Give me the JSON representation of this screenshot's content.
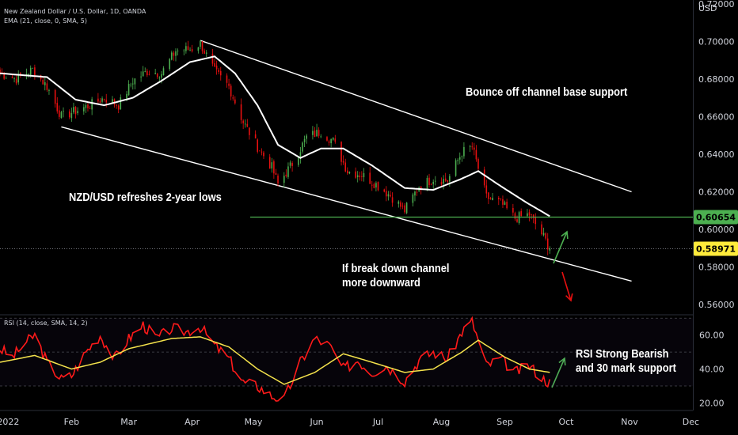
{
  "header": {
    "symbol_line": "New Zealand Dollar / U.S. Dollar, 1D, OANDA",
    "indicator_line": "EMA (21, close, 0, SMA, 5)",
    "rsi_label": "RSI (14, close, SMA, 14, 2)"
  },
  "annotations": {
    "bounce": "Bounce off channel base support",
    "lows": "NZD/USD refreshes 2-year lows",
    "break_line1": "If break down channel",
    "break_line2": "more downward",
    "rsi_line1": "RSI Strong Bearish",
    "rsi_line2": "and 30 mark support"
  },
  "colors": {
    "background": "#000000",
    "bull": "#4caf50",
    "bear": "#e81010",
    "ema": "#ffffff",
    "rsi": "#ff1a1a",
    "rsi_ma": "#f5e34c",
    "support": "#4caf50",
    "arrow_up": "#4caf50",
    "arrow_down": "#e81010",
    "price_badge": "#ffeb3b",
    "level_badge": "#4caf50"
  },
  "chart_data": [
    {
      "type": "candlestick",
      "title": "New Zealand Dollar / U.S. Dollar, 1D, OANDA",
      "y_unit": "USD",
      "ylim": [
        0.555,
        0.722
      ],
      "y_ticks": [
        "0.56000",
        "0.58000",
        "0.60000",
        "0.62000",
        "0.64000",
        "0.66000",
        "0.68000",
        "0.70000",
        "0.72000"
      ],
      "x_range": [
        "2021-12-28",
        "2022-12-02"
      ],
      "x_ticks": [
        {
          "label": "2022",
          "date": "2022-01-01"
        },
        {
          "label": "Feb",
          "date": "2022-02-01"
        },
        {
          "label": "Mar",
          "date": "2022-03-01"
        },
        {
          "label": "Apr",
          "date": "2022-04-01"
        },
        {
          "label": "May",
          "date": "2022-05-01"
        },
        {
          "label": "Jun",
          "date": "2022-06-01"
        },
        {
          "label": "Jul",
          "date": "2022-07-01"
        },
        {
          "label": "Aug",
          "date": "2022-08-01"
        },
        {
          "label": "Sep",
          "date": "2022-09-01"
        },
        {
          "label": "Oct",
          "date": "2022-10-01"
        },
        {
          "label": "Nov",
          "date": "2022-11-01"
        },
        {
          "label": "Dec",
          "date": "2022-12-01"
        }
      ],
      "close_path": [
        {
          "date": "2021-12-28",
          "close": 0.683
        },
        {
          "date": "2022-01-05",
          "close": 0.68
        },
        {
          "date": "2022-01-13",
          "close": 0.685
        },
        {
          "date": "2022-01-20",
          "close": 0.676
        },
        {
          "date": "2022-01-27",
          "close": 0.66
        },
        {
          "date": "2022-02-03",
          "close": 0.663
        },
        {
          "date": "2022-02-10",
          "close": 0.666
        },
        {
          "date": "2022-02-17",
          "close": 0.67
        },
        {
          "date": "2022-02-24",
          "close": 0.666
        },
        {
          "date": "2022-03-03",
          "close": 0.679
        },
        {
          "date": "2022-03-10",
          "close": 0.684
        },
        {
          "date": "2022-03-17",
          "close": 0.683
        },
        {
          "date": "2022-03-24",
          "close": 0.695
        },
        {
          "date": "2022-04-01",
          "close": 0.696
        },
        {
          "date": "2022-04-05",
          "close": 0.699
        },
        {
          "date": "2022-04-12",
          "close": 0.684
        },
        {
          "date": "2022-04-19",
          "close": 0.676
        },
        {
          "date": "2022-04-26",
          "close": 0.657
        },
        {
          "date": "2022-05-03",
          "close": 0.644
        },
        {
          "date": "2022-05-10",
          "close": 0.633
        },
        {
          "date": "2022-05-13",
          "close": 0.624
        },
        {
          "date": "2022-05-20",
          "close": 0.635
        },
        {
          "date": "2022-05-27",
          "close": 0.649
        },
        {
          "date": "2022-06-03",
          "close": 0.652
        },
        {
          "date": "2022-06-09",
          "close": 0.647
        },
        {
          "date": "2022-06-16",
          "close": 0.631
        },
        {
          "date": "2022-06-23",
          "close": 0.629
        },
        {
          "date": "2022-06-30",
          "close": 0.624
        },
        {
          "date": "2022-07-07",
          "close": 0.618
        },
        {
          "date": "2022-07-14",
          "close": 0.61
        },
        {
          "date": "2022-07-21",
          "close": 0.623
        },
        {
          "date": "2022-07-28",
          "close": 0.627
        },
        {
          "date": "2022-08-04",
          "close": 0.626
        },
        {
          "date": "2022-08-11",
          "close": 0.641
        },
        {
          "date": "2022-08-16",
          "close": 0.644
        },
        {
          "date": "2022-08-23",
          "close": 0.617
        },
        {
          "date": "2022-08-30",
          "close": 0.614
        },
        {
          "date": "2022-09-06",
          "close": 0.606
        },
        {
          "date": "2022-09-13",
          "close": 0.608
        },
        {
          "date": "2022-09-20",
          "close": 0.596
        },
        {
          "date": "2022-09-23",
          "close": 0.5897
        }
      ],
      "ema21_path": [
        {
          "date": "2021-12-28",
          "value": 0.683
        },
        {
          "date": "2022-01-20",
          "value": 0.681
        },
        {
          "date": "2022-02-03",
          "value": 0.669
        },
        {
          "date": "2022-02-17",
          "value": 0.666
        },
        {
          "date": "2022-03-03",
          "value": 0.67
        },
        {
          "date": "2022-03-17",
          "value": 0.679
        },
        {
          "date": "2022-03-31",
          "value": 0.689
        },
        {
          "date": "2022-04-12",
          "value": 0.692
        },
        {
          "date": "2022-04-22",
          "value": 0.683
        },
        {
          "date": "2022-05-03",
          "value": 0.666
        },
        {
          "date": "2022-05-13",
          "value": 0.645
        },
        {
          "date": "2022-05-24",
          "value": 0.638
        },
        {
          "date": "2022-06-03",
          "value": 0.643
        },
        {
          "date": "2022-06-14",
          "value": 0.643
        },
        {
          "date": "2022-06-28",
          "value": 0.634
        },
        {
          "date": "2022-07-14",
          "value": 0.622
        },
        {
          "date": "2022-07-28",
          "value": 0.621
        },
        {
          "date": "2022-08-11",
          "value": 0.627
        },
        {
          "date": "2022-08-19",
          "value": 0.631
        },
        {
          "date": "2022-08-30",
          "value": 0.623
        },
        {
          "date": "2022-09-12",
          "value": 0.614
        },
        {
          "date": "2022-09-23",
          "value": 0.607
        }
      ],
      "current_price": 0.58971,
      "support_level": 0.60654,
      "channel_upper": [
        {
          "date": "2022-04-05",
          "price": 0.7005
        },
        {
          "date": "2022-11-02",
          "price": 0.62
        }
      ],
      "channel_lower": [
        {
          "date": "2022-01-27",
          "price": 0.6545
        },
        {
          "date": "2022-11-02",
          "price": 0.5725
        }
      ]
    },
    {
      "type": "line",
      "title": "RSI (14, close, SMA, 14, 2)",
      "ylim": [
        16,
        72
      ],
      "y_ticks": [
        20,
        40,
        60
      ],
      "bands": {
        "upper": 70,
        "middle": 50,
        "lower": 30
      },
      "series": [
        {
          "name": "RSI",
          "points": [
            {
              "date": "2021-12-28",
              "value": 52
            },
            {
              "date": "2022-01-03",
              "value": 47
            },
            {
              "date": "2022-01-10",
              "value": 56
            },
            {
              "date": "2022-01-14",
              "value": 60
            },
            {
              "date": "2022-01-20",
              "value": 44
            },
            {
              "date": "2022-01-27",
              "value": 34
            },
            {
              "date": "2022-02-01",
              "value": 36
            },
            {
              "date": "2022-02-08",
              "value": 50
            },
            {
              "date": "2022-02-15",
              "value": 60
            },
            {
              "date": "2022-02-22",
              "value": 46
            },
            {
              "date": "2022-03-01",
              "value": 58
            },
            {
              "date": "2022-03-08",
              "value": 66
            },
            {
              "date": "2022-03-15",
              "value": 58
            },
            {
              "date": "2022-03-22",
              "value": 64
            },
            {
              "date": "2022-03-29",
              "value": 62
            },
            {
              "date": "2022-04-05",
              "value": 65
            },
            {
              "date": "2022-04-12",
              "value": 54
            },
            {
              "date": "2022-04-19",
              "value": 46
            },
            {
              "date": "2022-04-26",
              "value": 32
            },
            {
              "date": "2022-05-03",
              "value": 30
            },
            {
              "date": "2022-05-10",
              "value": 24
            },
            {
              "date": "2022-05-16",
              "value": 22
            },
            {
              "date": "2022-05-24",
              "value": 44
            },
            {
              "date": "2022-05-31",
              "value": 58
            },
            {
              "date": "2022-06-07",
              "value": 54
            },
            {
              "date": "2022-06-14",
              "value": 40
            },
            {
              "date": "2022-06-21",
              "value": 45
            },
            {
              "date": "2022-06-28",
              "value": 38
            },
            {
              "date": "2022-07-05",
              "value": 42
            },
            {
              "date": "2022-07-14",
              "value": 33
            },
            {
              "date": "2022-07-21",
              "value": 45
            },
            {
              "date": "2022-07-28",
              "value": 50
            },
            {
              "date": "2022-08-04",
              "value": 46
            },
            {
              "date": "2022-08-11",
              "value": 62
            },
            {
              "date": "2022-08-16",
              "value": 68
            },
            {
              "date": "2022-08-23",
              "value": 42
            },
            {
              "date": "2022-08-30",
              "value": 46
            },
            {
              "date": "2022-09-06",
              "value": 38
            },
            {
              "date": "2022-09-13",
              "value": 42
            },
            {
              "date": "2022-09-20",
              "value": 34
            },
            {
              "date": "2022-09-23",
              "value": 32
            }
          ]
        },
        {
          "name": "RSI-based MA",
          "points": [
            {
              "date": "2021-12-28",
              "value": 44
            },
            {
              "date": "2022-01-14",
              "value": 48
            },
            {
              "date": "2022-02-01",
              "value": 40
            },
            {
              "date": "2022-02-15",
              "value": 44
            },
            {
              "date": "2022-03-01",
              "value": 52
            },
            {
              "date": "2022-03-22",
              "value": 58
            },
            {
              "date": "2022-04-05",
              "value": 59
            },
            {
              "date": "2022-04-19",
              "value": 53
            },
            {
              "date": "2022-05-03",
              "value": 40
            },
            {
              "date": "2022-05-16",
              "value": 31
            },
            {
              "date": "2022-05-31",
              "value": 38
            },
            {
              "date": "2022-06-14",
              "value": 49
            },
            {
              "date": "2022-06-28",
              "value": 44
            },
            {
              "date": "2022-07-14",
              "value": 38
            },
            {
              "date": "2022-07-28",
              "value": 40
            },
            {
              "date": "2022-08-11",
              "value": 50
            },
            {
              "date": "2022-08-19",
              "value": 57
            },
            {
              "date": "2022-09-01",
              "value": 47
            },
            {
              "date": "2022-09-13",
              "value": 40
            },
            {
              "date": "2022-09-23",
              "value": 38
            }
          ]
        }
      ]
    }
  ]
}
